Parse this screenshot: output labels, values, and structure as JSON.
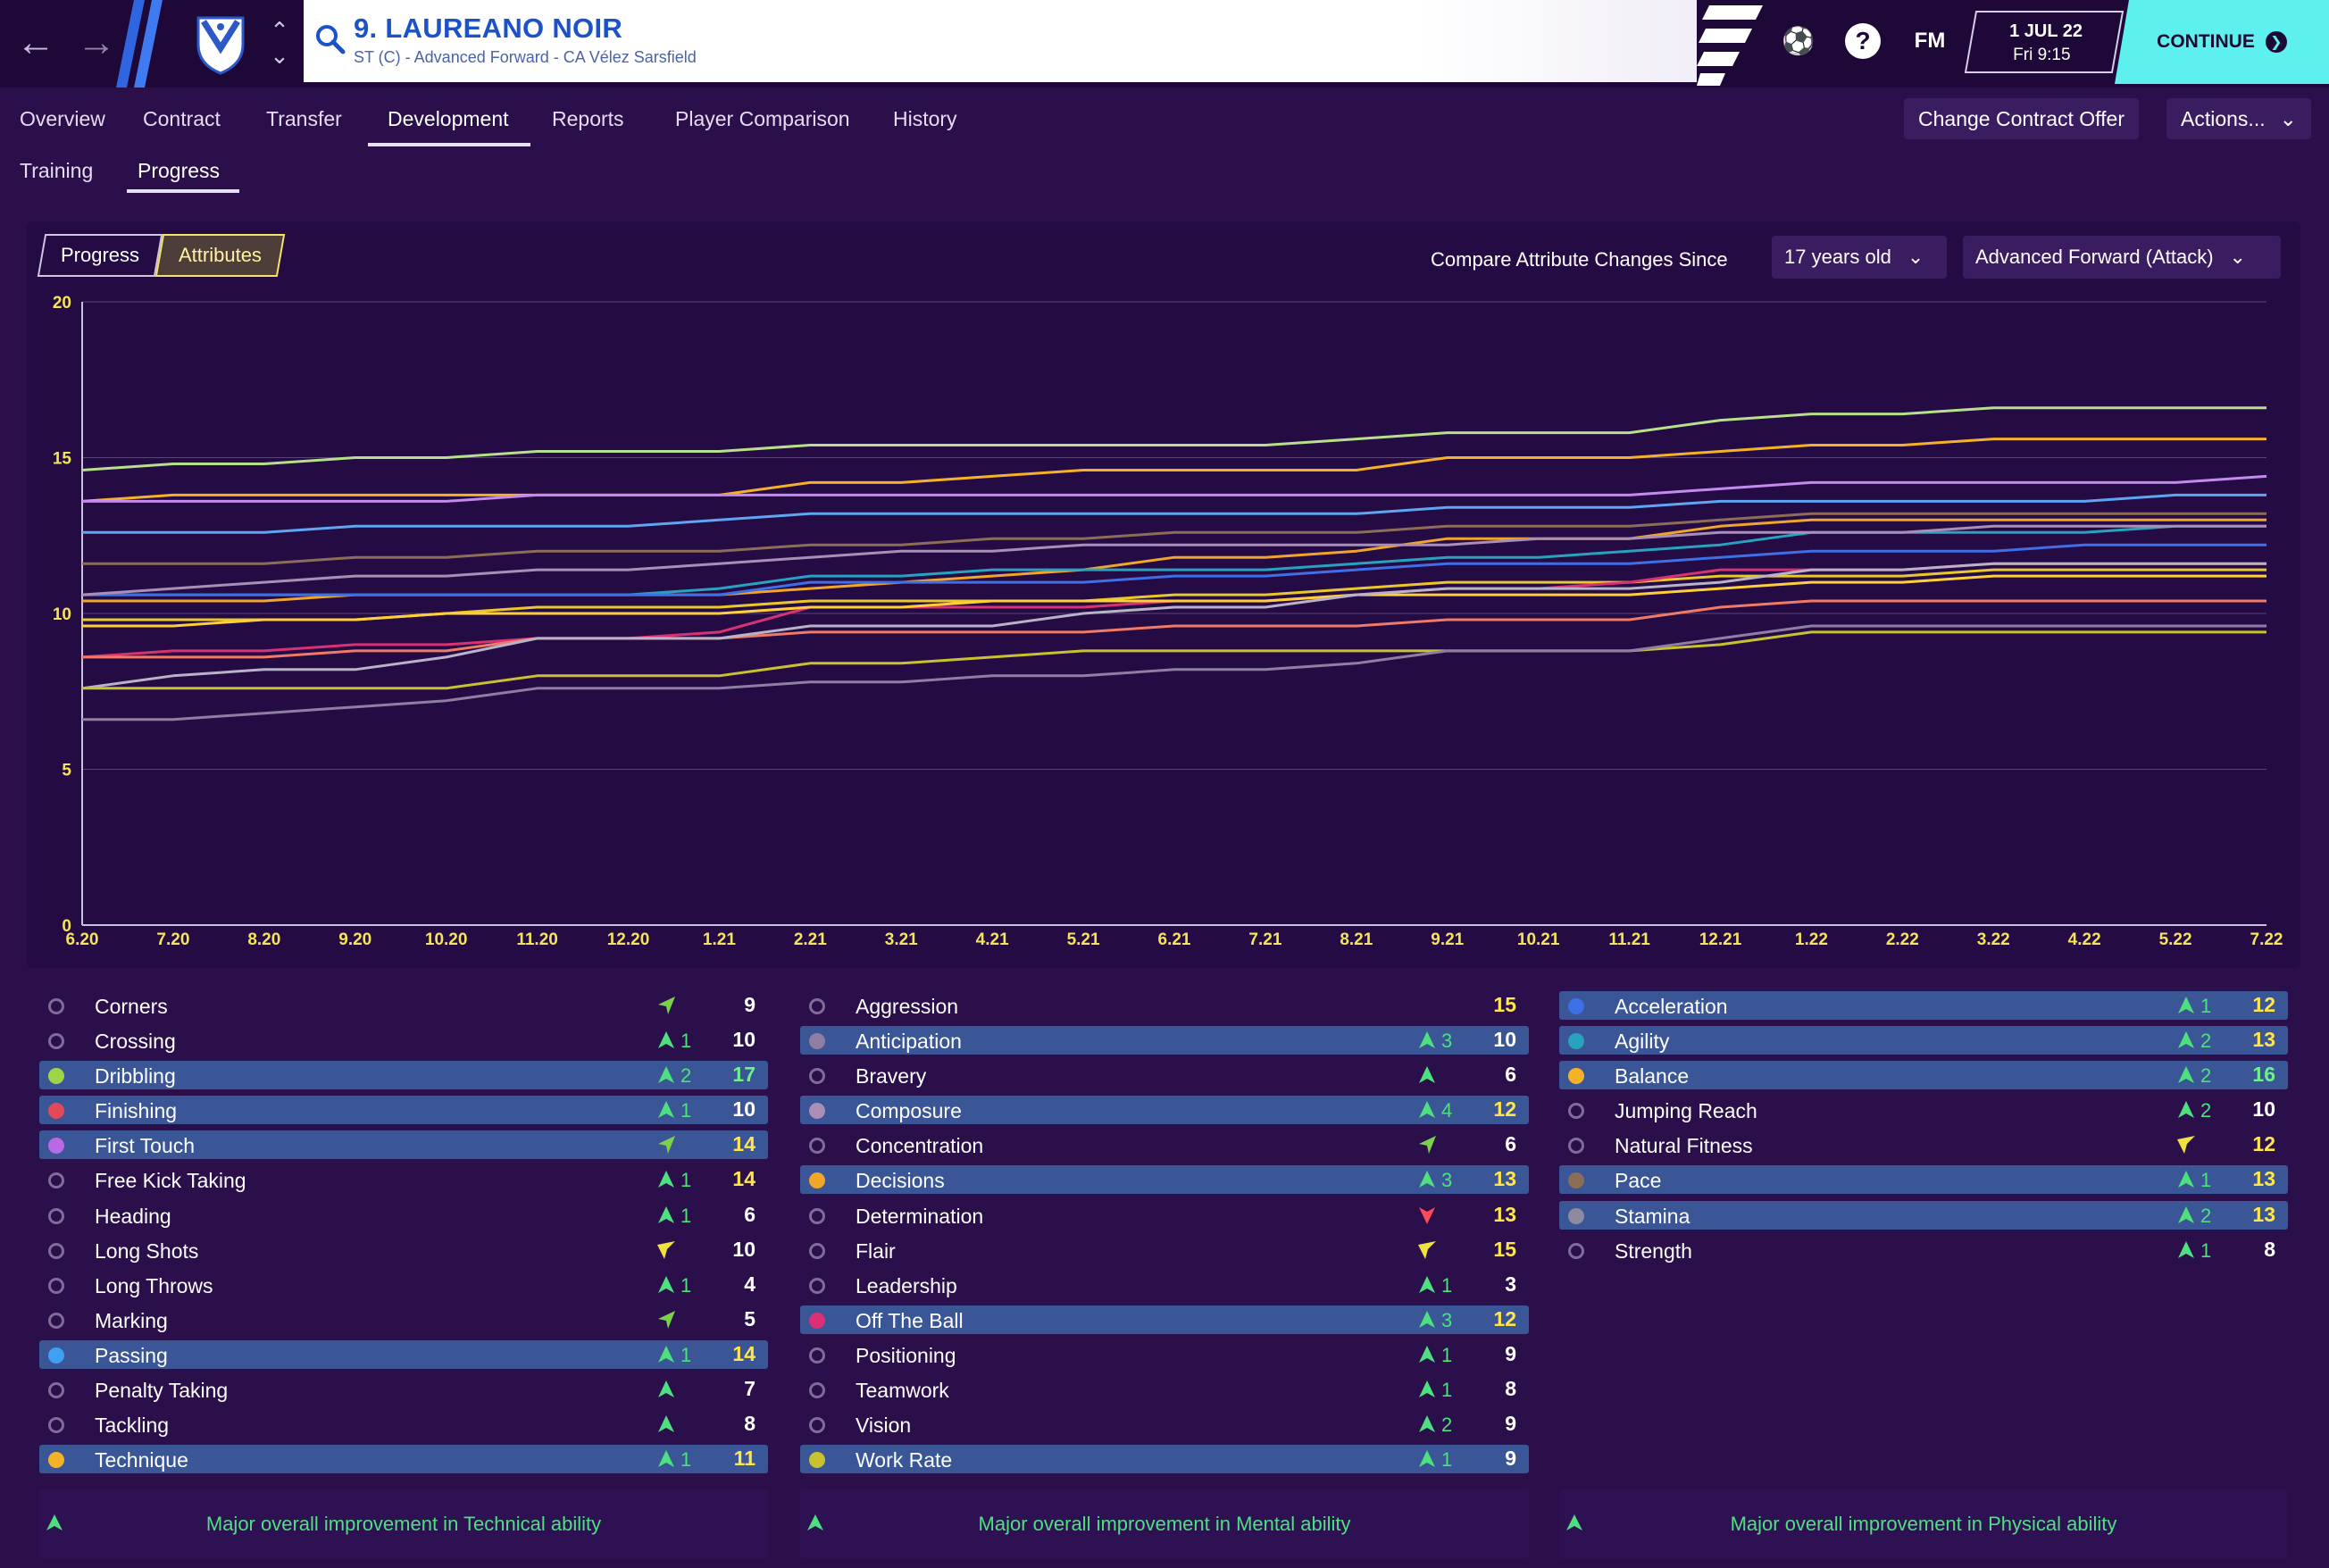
{
  "header": {
    "player_name": "9. LAUREANO NOIR",
    "player_sub": "ST (C) - Advanced Forward - CA Vélez Sarsfield",
    "fm_label": "FM",
    "date": "1 JUL 22",
    "time": "Fri 9:15",
    "continue_label": "CONTINUE",
    "help_label": "?"
  },
  "tabs": [
    "Overview",
    "Contract",
    "Transfer",
    "Development",
    "Reports",
    "Player Comparison",
    "History"
  ],
  "active_tab": "Development",
  "actions": {
    "change_contract": "Change Contract Offer",
    "actions": "Actions..."
  },
  "subtabs": [
    "Training",
    "Progress"
  ],
  "active_subtab": "Progress",
  "graph_controls": {
    "toggle": [
      "Progress",
      "Attributes"
    ],
    "active_toggle": "Attributes",
    "compare_label": "Compare Attribute Changes Since",
    "since_value": "17 years old",
    "role_value": "Advanced Forward (Attack)"
  },
  "chart_data": {
    "type": "line",
    "x": [
      "6.20",
      "7.20",
      "8.20",
      "9.20",
      "10.20",
      "11.20",
      "12.20",
      "1.21",
      "2.21",
      "3.21",
      "4.21",
      "5.21",
      "6.21",
      "7.21",
      "8.21",
      "9.21",
      "10.21",
      "11.21",
      "12.21",
      "1.22",
      "2.22",
      "3.22",
      "4.22",
      "5.22",
      "7.22"
    ],
    "ylim": [
      0,
      20
    ],
    "yticks": [
      0,
      5,
      10,
      15,
      20
    ],
    "grid": true,
    "series": [
      {
        "color": "#b7e08a",
        "values": [
          14.6,
          14.8,
          14.8,
          15.0,
          15.0,
          15.2,
          15.2,
          15.2,
          15.4,
          15.4,
          15.4,
          15.4,
          15.4,
          15.4,
          15.6,
          15.8,
          15.8,
          15.8,
          16.2,
          16.4,
          16.4,
          16.6,
          16.6,
          16.6,
          16.6
        ]
      },
      {
        "color": "#f4b228",
        "values": [
          13.6,
          13.8,
          13.8,
          13.8,
          13.8,
          13.8,
          13.8,
          13.8,
          14.2,
          14.2,
          14.4,
          14.6,
          14.6,
          14.6,
          14.6,
          15.0,
          15.0,
          15.0,
          15.2,
          15.4,
          15.4,
          15.6,
          15.6,
          15.6,
          15.6
        ]
      },
      {
        "color": "#c58af0",
        "values": [
          13.6,
          13.6,
          13.6,
          13.6,
          13.6,
          13.8,
          13.8,
          13.8,
          13.8,
          13.8,
          13.8,
          13.8,
          13.8,
          13.8,
          13.8,
          13.8,
          13.8,
          13.8,
          14.0,
          14.2,
          14.2,
          14.2,
          14.2,
          14.2,
          14.4
        ]
      },
      {
        "color": "#5fa6f2",
        "values": [
          12.6,
          12.6,
          12.6,
          12.8,
          12.8,
          12.8,
          12.8,
          13.0,
          13.2,
          13.2,
          13.2,
          13.2,
          13.2,
          13.2,
          13.2,
          13.4,
          13.4,
          13.4,
          13.6,
          13.6,
          13.6,
          13.6,
          13.6,
          13.8,
          13.8
        ]
      },
      {
        "color": "#8c6d58",
        "values": [
          11.6,
          11.6,
          11.6,
          11.8,
          11.8,
          12.0,
          12.0,
          12.0,
          12.2,
          12.2,
          12.4,
          12.4,
          12.6,
          12.6,
          12.6,
          12.8,
          12.8,
          12.8,
          13.0,
          13.2,
          13.2,
          13.2,
          13.2,
          13.2,
          13.2
        ]
      },
      {
        "color": "#f0a628",
        "values": [
          10.4,
          10.4,
          10.4,
          10.6,
          10.6,
          10.6,
          10.6,
          10.6,
          10.8,
          11.0,
          11.2,
          11.4,
          11.8,
          11.8,
          12.0,
          12.4,
          12.4,
          12.4,
          12.8,
          13.0,
          13.0,
          13.0,
          13.0,
          13.0,
          13.0
        ]
      },
      {
        "color": "#27a3c0",
        "values": [
          10.6,
          10.6,
          10.6,
          10.6,
          10.6,
          10.6,
          10.6,
          10.8,
          11.2,
          11.2,
          11.4,
          11.4,
          11.4,
          11.4,
          11.6,
          11.8,
          11.8,
          12.0,
          12.2,
          12.6,
          12.6,
          12.6,
          12.6,
          12.8,
          12.8
        ]
      },
      {
        "color": "#3f6fe6",
        "values": [
          10.6,
          10.6,
          10.6,
          10.6,
          10.6,
          10.6,
          10.6,
          10.6,
          11.0,
          11.0,
          11.0,
          11.0,
          11.2,
          11.2,
          11.4,
          11.6,
          11.6,
          11.6,
          11.8,
          12.0,
          12.0,
          12.0,
          12.2,
          12.2,
          12.2
        ]
      },
      {
        "color": "#a98fb8",
        "values": [
          10.6,
          10.8,
          11.0,
          11.2,
          11.2,
          11.4,
          11.4,
          11.6,
          11.8,
          12.0,
          12.0,
          12.2,
          12.2,
          12.2,
          12.2,
          12.2,
          12.4,
          12.4,
          12.6,
          12.6,
          12.6,
          12.8,
          12.8,
          12.8,
          12.8
        ]
      },
      {
        "color": "#e8c82a",
        "values": [
          9.8,
          9.8,
          9.8,
          9.8,
          10.0,
          10.2,
          10.2,
          10.2,
          10.4,
          10.4,
          10.4,
          10.4,
          10.6,
          10.6,
          10.8,
          11.0,
          11.0,
          11.0,
          11.2,
          11.2,
          11.2,
          11.4,
          11.4,
          11.4,
          11.4
        ]
      },
      {
        "color": "#d83274",
        "values": [
          8.6,
          8.8,
          8.8,
          9.0,
          9.0,
          9.2,
          9.2,
          9.4,
          10.2,
          10.2,
          10.2,
          10.2,
          10.4,
          10.4,
          10.6,
          10.8,
          10.8,
          11.0,
          11.4,
          11.4,
          11.4,
          11.6,
          11.6,
          11.6,
          11.6
        ]
      },
      {
        "color": "#ef7a66",
        "values": [
          8.6,
          8.6,
          8.6,
          8.8,
          8.8,
          9.2,
          9.2,
          9.2,
          9.4,
          9.4,
          9.4,
          9.4,
          9.6,
          9.6,
          9.6,
          9.8,
          9.8,
          9.8,
          10.2,
          10.4,
          10.4,
          10.4,
          10.4,
          10.4,
          10.4
        ]
      },
      {
        "color": "#ffcf3a",
        "values": [
          9.6,
          9.6,
          9.8,
          9.8,
          10.0,
          10.0,
          10.0,
          10.0,
          10.2,
          10.2,
          10.4,
          10.4,
          10.4,
          10.4,
          10.6,
          10.6,
          10.6,
          10.6,
          10.8,
          11.0,
          11.0,
          11.2,
          11.2,
          11.2,
          11.2
        ]
      },
      {
        "color": "#b8b3c8",
        "values": [
          7.6,
          8.0,
          8.2,
          8.2,
          8.6,
          9.2,
          9.2,
          9.2,
          9.6,
          9.6,
          9.6,
          10.0,
          10.2,
          10.2,
          10.6,
          10.8,
          10.8,
          10.8,
          11.0,
          11.4,
          11.4,
          11.6,
          11.6,
          11.6,
          11.6
        ]
      },
      {
        "color": "#c7c22e",
        "values": [
          7.6,
          7.6,
          7.6,
          7.6,
          7.6,
          8.0,
          8.0,
          8.0,
          8.4,
          8.4,
          8.6,
          8.8,
          8.8,
          8.8,
          8.8,
          8.8,
          8.8,
          8.8,
          9.0,
          9.4,
          9.4,
          9.4,
          9.4,
          9.4,
          9.4
        ]
      },
      {
        "color": "#8f7ea3",
        "values": [
          6.6,
          6.6,
          6.8,
          7.0,
          7.2,
          7.6,
          7.6,
          7.6,
          7.8,
          7.8,
          8.0,
          8.0,
          8.2,
          8.2,
          8.4,
          8.8,
          8.8,
          8.8,
          9.2,
          9.6,
          9.6,
          9.6,
          9.6,
          9.6,
          9.6
        ]
      }
    ]
  },
  "technical": [
    {
      "name": "Corners",
      "value": "9",
      "change": "",
      "arrow": "side-green",
      "dot": "",
      "hl": false
    },
    {
      "name": "Crossing",
      "value": "10",
      "change": "1",
      "arrow": "up",
      "dot": "",
      "hl": false
    },
    {
      "name": "Dribbling",
      "value": "17",
      "change": "2",
      "arrow": "up",
      "dot": "#9ed34a",
      "hl": true
    },
    {
      "name": "Finishing",
      "value": "10",
      "change": "1",
      "arrow": "up",
      "dot": "#e04a5a",
      "hl": true
    },
    {
      "name": "First Touch",
      "value": "14",
      "change": "",
      "arrow": "side-green",
      "dot": "#b76ae4",
      "hl": true
    },
    {
      "name": "Free Kick Taking",
      "value": "14",
      "change": "1",
      "arrow": "up",
      "dot": "",
      "hl": false
    },
    {
      "name": "Heading",
      "value": "6",
      "change": "1",
      "arrow": "up",
      "dot": "",
      "hl": false
    },
    {
      "name": "Long Shots",
      "value": "10",
      "change": "",
      "arrow": "side-yellow",
      "dot": "",
      "hl": false
    },
    {
      "name": "Long Throws",
      "value": "4",
      "change": "1",
      "arrow": "up",
      "dot": "",
      "hl": false
    },
    {
      "name": "Marking",
      "value": "5",
      "change": "",
      "arrow": "side-green",
      "dot": "",
      "hl": false
    },
    {
      "name": "Passing",
      "value": "14",
      "change": "1",
      "arrow": "up",
      "dot": "#3fa0f0",
      "hl": true
    },
    {
      "name": "Penalty Taking",
      "value": "7",
      "change": "",
      "arrow": "up",
      "dot": "",
      "hl": false
    },
    {
      "name": "Tackling",
      "value": "8",
      "change": "",
      "arrow": "up",
      "dot": "",
      "hl": false
    },
    {
      "name": "Technique",
      "value": "11",
      "change": "1",
      "arrow": "up",
      "dot": "#f4b228",
      "hl": true
    }
  ],
  "mental": [
    {
      "name": "Aggression",
      "value": "15",
      "change": "",
      "arrow": "",
      "dot": "",
      "hl": false
    },
    {
      "name": "Anticipation",
      "value": "10",
      "change": "3",
      "arrow": "up",
      "dot": "#8f7ea3",
      "hl": true
    },
    {
      "name": "Bravery",
      "value": "6",
      "change": "",
      "arrow": "up",
      "dot": "",
      "hl": false
    },
    {
      "name": "Composure",
      "value": "12",
      "change": "4",
      "arrow": "up",
      "dot": "#a98fb8",
      "hl": true
    },
    {
      "name": "Concentration",
      "value": "6",
      "change": "",
      "arrow": "side-green",
      "dot": "",
      "hl": false
    },
    {
      "name": "Decisions",
      "value": "13",
      "change": "3",
      "arrow": "up",
      "dot": "#f0a628",
      "hl": true
    },
    {
      "name": "Determination",
      "value": "13",
      "change": "",
      "arrow": "down",
      "dot": "",
      "hl": false
    },
    {
      "name": "Flair",
      "value": "15",
      "change": "",
      "arrow": "side-yellow",
      "dot": "",
      "hl": false
    },
    {
      "name": "Leadership",
      "value": "3",
      "change": "1",
      "arrow": "up",
      "dot": "",
      "hl": false
    },
    {
      "name": "Off The Ball",
      "value": "12",
      "change": "3",
      "arrow": "up",
      "dot": "#d83274",
      "hl": true
    },
    {
      "name": "Positioning",
      "value": "9",
      "change": "1",
      "arrow": "up",
      "dot": "",
      "hl": false
    },
    {
      "name": "Teamwork",
      "value": "8",
      "change": "1",
      "arrow": "up",
      "dot": "",
      "hl": false
    },
    {
      "name": "Vision",
      "value": "9",
      "change": "2",
      "arrow": "up",
      "dot": "",
      "hl": false
    },
    {
      "name": "Work Rate",
      "value": "9",
      "change": "1",
      "arrow": "up",
      "dot": "#c7c22e",
      "hl": true
    }
  ],
  "physical": [
    {
      "name": "Acceleration",
      "value": "12",
      "change": "1",
      "arrow": "up",
      "dot": "#3f6fe6",
      "hl": true
    },
    {
      "name": "Agility",
      "value": "13",
      "change": "2",
      "arrow": "up",
      "dot": "#27a3c0",
      "hl": true
    },
    {
      "name": "Balance",
      "value": "16",
      "change": "2",
      "arrow": "up",
      "dot": "#f4b228",
      "hl": true
    },
    {
      "name": "Jumping Reach",
      "value": "10",
      "change": "2",
      "arrow": "up",
      "dot": "",
      "hl": false
    },
    {
      "name": "Natural Fitness",
      "value": "12",
      "change": "",
      "arrow": "side-yellow",
      "dot": "",
      "hl": false
    },
    {
      "name": "Pace",
      "value": "13",
      "change": "1",
      "arrow": "up",
      "dot": "#8c6d58",
      "hl": true
    },
    {
      "name": "Stamina",
      "value": "13",
      "change": "2",
      "arrow": "up",
      "dot": "#8f8aa0",
      "hl": true
    },
    {
      "name": "Strength",
      "value": "8",
      "change": "1",
      "arrow": "up",
      "dot": "",
      "hl": false
    }
  ],
  "footers": [
    "Major overall improvement in Technical ability",
    "Major overall improvement in Mental ability",
    "Major overall improvement in Physical ability"
  ]
}
